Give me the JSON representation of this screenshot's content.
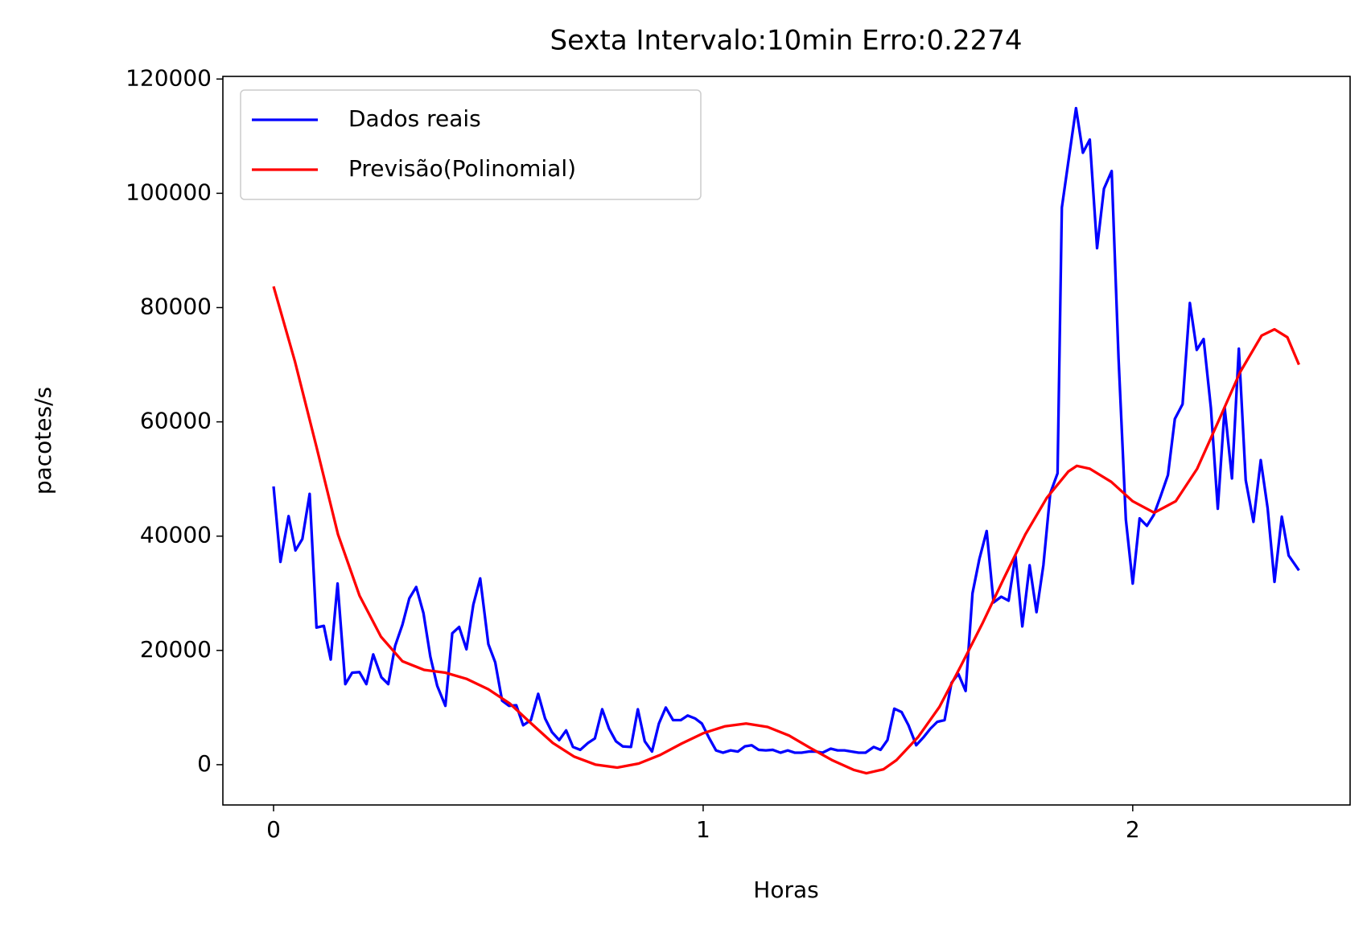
{
  "chart_data": {
    "type": "line",
    "title": "Sexta Intervalo:10min Erro:0.2274",
    "x_label": "Horas",
    "y_label": "pacotes/s",
    "xlim": [
      -0.118,
      2.506
    ],
    "ylim": [
      -7050,
      120460
    ],
    "xticks": [
      0,
      1,
      2
    ],
    "yticks": [
      0,
      20000,
      40000,
      60000,
      80000,
      100000,
      120000
    ],
    "legend": "upper left",
    "grid": false,
    "series": [
      {
        "name": "Dados reais",
        "color": "#0000ff",
        "x": [
          0,
          0.016,
          0.035,
          0.051,
          0.067,
          0.084,
          0.1,
          0.117,
          0.133,
          0.149,
          0.167,
          0.183,
          0.2,
          0.216,
          0.232,
          0.251,
          0.267,
          0.283,
          0.3,
          0.316,
          0.332,
          0.349,
          0.365,
          0.381,
          0.4,
          0.416,
          0.432,
          0.449,
          0.465,
          0.481,
          0.5,
          0.516,
          0.532,
          0.548,
          0.565,
          0.581,
          0.599,
          0.616,
          0.632,
          0.648,
          0.665,
          0.681,
          0.697,
          0.714,
          0.732,
          0.748,
          0.765,
          0.781,
          0.797,
          0.813,
          0.832,
          0.848,
          0.864,
          0.881,
          0.897,
          0.913,
          0.93,
          0.948,
          0.964,
          0.981,
          0.997,
          1.013,
          1.03,
          1.046,
          1.064,
          1.081,
          1.097,
          1.113,
          1.129,
          1.146,
          1.162,
          1.18,
          1.197,
          1.213,
          1.229,
          1.246,
          1.262,
          1.278,
          1.297,
          1.313,
          1.329,
          1.346,
          1.362,
          1.378,
          1.397,
          1.413,
          1.429,
          1.445,
          1.462,
          1.478,
          1.496,
          1.513,
          1.529,
          1.545,
          1.562,
          1.578,
          1.594,
          1.611,
          1.627,
          1.643,
          1.66,
          1.676,
          1.694,
          1.711,
          1.727,
          1.743,
          1.76,
          1.776,
          1.792,
          1.808,
          1.825,
          1.835,
          1.851,
          1.868,
          1.884,
          1.9,
          1.917,
          1.933,
          1.951,
          1.967,
          1.984,
          2.0,
          2.016,
          2.033,
          2.049,
          2.065,
          2.082,
          2.098,
          2.116,
          2.133,
          2.149,
          2.165,
          2.182,
          2.198,
          2.214,
          2.231,
          2.247,
          2.263,
          2.281,
          2.298,
          2.314,
          2.33,
          2.347,
          2.363,
          2.387
        ],
        "values": [
          48700,
          35500,
          43500,
          37500,
          39500,
          47400,
          24000,
          24300,
          18400,
          31700,
          14100,
          16100,
          16200,
          14100,
          19300,
          15300,
          14100,
          20800,
          24500,
          29100,
          31100,
          26500,
          18900,
          13800,
          10300,
          23000,
          24100,
          20200,
          28000,
          32600,
          21100,
          17900,
          11200,
          10300,
          10400,
          6900,
          7800,
          12400,
          8100,
          5700,
          4300,
          6000,
          3100,
          2600,
          3800,
          4600,
          9700,
          6300,
          4100,
          3200,
          3100,
          9700,
          4100,
          2300,
          7200,
          10000,
          7800,
          7800,
          8600,
          8100,
          7200,
          4800,
          2500,
          2100,
          2500,
          2300,
          3200,
          3400,
          2600,
          2500,
          2600,
          2100,
          2500,
          2100,
          2100,
          2300,
          2300,
          2100,
          2800,
          2500,
          2500,
          2300,
          2100,
          2100,
          3100,
          2600,
          4300,
          9800,
          9200,
          6900,
          3400,
          4800,
          6300,
          7500,
          7800,
          14300,
          15900,
          12900,
          30000,
          36000,
          40900,
          28400,
          29400,
          28700,
          36600,
          24200,
          34900,
          26700,
          34900,
          47500,
          51000,
          97500,
          106000,
          114900,
          107100,
          109400,
          90400,
          100800,
          103900,
          71100,
          42900,
          31700,
          43100,
          41800,
          43700,
          47000,
          50700,
          60500,
          63100,
          80800,
          72600,
          74500,
          62400,
          44800,
          62500,
          50100,
          72800,
          49800,
          42500,
          53300,
          44900,
          32000,
          43400,
          36600,
          34000
        ]
      },
      {
        "name": "Previsão(Polinomial)",
        "color": "#ff0000",
        "x": [
          0,
          0.05,
          0.1,
          0.15,
          0.2,
          0.25,
          0.3,
          0.35,
          0.4,
          0.45,
          0.5,
          0.55,
          0.6,
          0.65,
          0.7,
          0.75,
          0.8,
          0.85,
          0.9,
          0.95,
          1.0,
          1.05,
          1.1,
          1.15,
          1.2,
          1.25,
          1.3,
          1.35,
          1.38,
          1.42,
          1.45,
          1.5,
          1.55,
          1.6,
          1.65,
          1.7,
          1.75,
          1.8,
          1.85,
          1.87,
          1.9,
          1.95,
          2.0,
          2.05,
          2.1,
          2.15,
          2.2,
          2.25,
          2.3,
          2.33,
          2.36,
          2.387
        ],
        "values": [
          83700,
          70500,
          55600,
          40300,
          29600,
          22400,
          18100,
          16600,
          16100,
          15000,
          13200,
          10700,
          7200,
          3800,
          1400,
          0,
          -500,
          200,
          1700,
          3700,
          5500,
          6700,
          7200,
          6600,
          5100,
          2900,
          800,
          -900,
          -1500,
          -800,
          800,
          4800,
          10100,
          17300,
          24700,
          32600,
          40300,
          46700,
          51300,
          52300,
          51800,
          49500,
          46100,
          44100,
          46100,
          51800,
          60200,
          68700,
          75100,
          76200,
          74800,
          70000
        ]
      }
    ]
  }
}
